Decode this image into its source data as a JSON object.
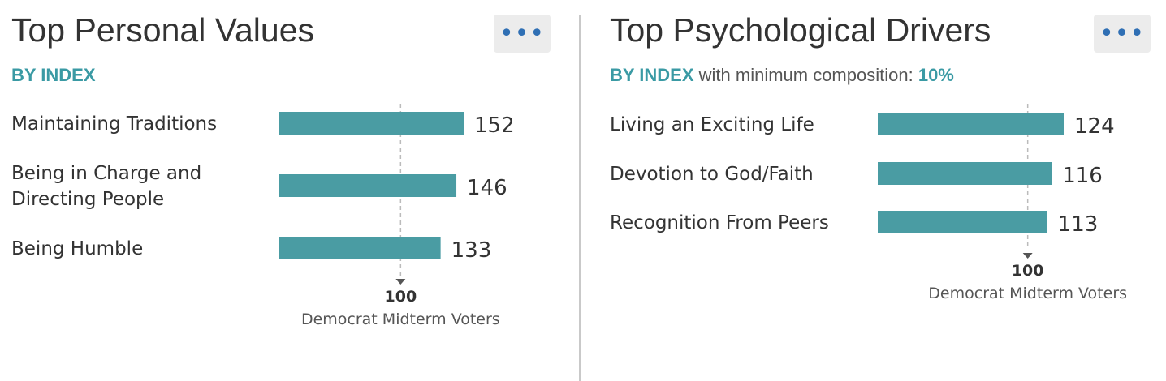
{
  "panels": [
    {
      "title": "Top Personal Values",
      "subtitle_accent": "BY INDEX",
      "subtitle_text": "",
      "subtitle_value": "",
      "more_label": "•••"
    },
    {
      "title": "Top Psychological Drivers",
      "subtitle_accent": "BY INDEX",
      "subtitle_text": " with minimum composition: ",
      "subtitle_value": "10%",
      "more_label": "•••"
    }
  ],
  "colors": {
    "bar": "#4a9ca3",
    "accent": "#3a9aa4",
    "more_icon": "#2f6fb4",
    "reference_line": "#bbbbbb"
  },
  "chart_data": [
    {
      "type": "bar",
      "orientation": "horizontal",
      "categories": [
        [
          "Maintaining Traditions"
        ],
        [
          "Being in Charge and",
          "Directing People"
        ],
        [
          "Being Humble"
        ]
      ],
      "values": [
        152,
        146,
        133
      ],
      "reference": {
        "value": 100,
        "tick_label": "100",
        "label": "Democrat Midterm Voters"
      }
    },
    {
      "type": "bar",
      "orientation": "horizontal",
      "categories": [
        [
          "Living an Exciting Life"
        ],
        [
          "Devotion to God/Faith"
        ],
        [
          "Recognition From Peers"
        ]
      ],
      "values": [
        124,
        116,
        113
      ],
      "reference": {
        "value": 100,
        "tick_label": "100",
        "label": "Democrat Midterm Voters"
      }
    }
  ]
}
